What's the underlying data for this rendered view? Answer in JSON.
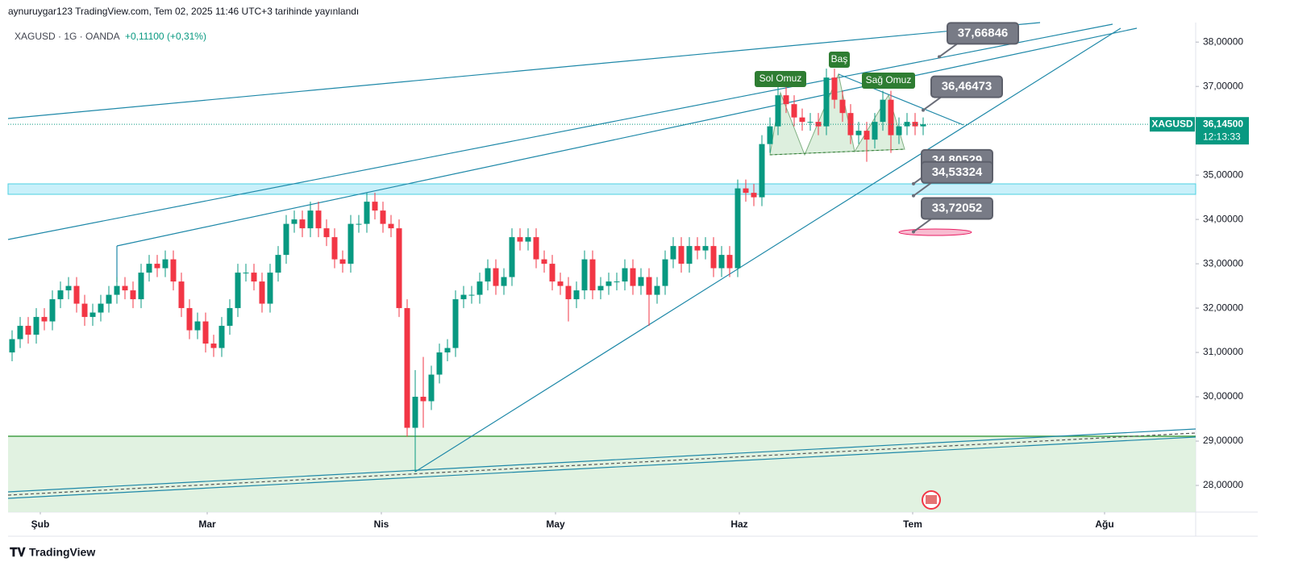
{
  "header": {
    "title": "aynuruygar123 TradingView.com, Tem 02, 2025 11:46 UTC+3 tarihinde yayınlandı"
  },
  "chart_data": {
    "type": "candlestick",
    "title": "XAGUSD · 1G · OANDA",
    "subtitle": "+0,11100 (+0,31%)",
    "up_color": "#089981",
    "down_color": "#f23645",
    "candles": [
      [
        31.0,
        31.5,
        30.8,
        31.3
      ],
      [
        31.3,
        31.8,
        31.1,
        31.6
      ],
      [
        31.6,
        31.8,
        31.2,
        31.4
      ],
      [
        31.4,
        32.0,
        31.2,
        31.8
      ],
      [
        31.8,
        32.0,
        31.5,
        31.7
      ],
      [
        31.7,
        32.4,
        31.5,
        32.2
      ],
      [
        32.2,
        32.6,
        32.0,
        32.4
      ],
      [
        32.4,
        32.7,
        32.2,
        32.5
      ],
      [
        32.5,
        32.7,
        31.9,
        32.1
      ],
      [
        32.1,
        32.3,
        31.6,
        31.8
      ],
      [
        31.8,
        32.1,
        31.6,
        31.9
      ],
      [
        31.9,
        32.3,
        31.7,
        32.1
      ],
      [
        32.1,
        32.5,
        31.9,
        32.3
      ],
      [
        32.3,
        32.7,
        32.1,
        32.5
      ],
      [
        32.5,
        32.7,
        32.2,
        32.4
      ],
      [
        32.4,
        32.6,
        32.0,
        32.2
      ],
      [
        32.2,
        33.0,
        32.0,
        32.8
      ],
      [
        32.8,
        33.2,
        32.6,
        33.0
      ],
      [
        33.0,
        33.2,
        32.7,
        32.9
      ],
      [
        32.9,
        33.3,
        32.7,
        33.1
      ],
      [
        33.1,
        33.3,
        32.4,
        32.6
      ],
      [
        32.6,
        32.8,
        31.8,
        32.0
      ],
      [
        32.0,
        32.2,
        31.3,
        31.5
      ],
      [
        31.5,
        31.9,
        31.3,
        31.7
      ],
      [
        31.7,
        31.9,
        31.0,
        31.2
      ],
      [
        31.2,
        31.4,
        30.9,
        31.1
      ],
      [
        31.1,
        31.8,
        30.9,
        31.6
      ],
      [
        31.6,
        32.2,
        31.4,
        32.0
      ],
      [
        32.0,
        33.0,
        31.8,
        32.8
      ],
      [
        32.8,
        33.0,
        32.6,
        32.8
      ],
      [
        32.8,
        33.0,
        32.4,
        32.6
      ],
      [
        32.6,
        32.8,
        31.9,
        32.1
      ],
      [
        32.1,
        33.0,
        31.9,
        32.8
      ],
      [
        32.8,
        33.4,
        32.6,
        33.2
      ],
      [
        33.2,
        34.1,
        33.0,
        33.9
      ],
      [
        33.9,
        34.2,
        33.7,
        34.0
      ],
      [
        34.0,
        34.2,
        33.6,
        33.8
      ],
      [
        33.8,
        34.4,
        33.6,
        34.2
      ],
      [
        34.2,
        34.4,
        33.6,
        33.8
      ],
      [
        33.8,
        34.0,
        33.4,
        33.6
      ],
      [
        33.6,
        33.8,
        32.9,
        33.1
      ],
      [
        33.1,
        33.3,
        32.8,
        33.0
      ],
      [
        33.0,
        34.1,
        32.8,
        33.9
      ],
      [
        33.9,
        34.1,
        33.7,
        33.9
      ],
      [
        33.9,
        34.6,
        33.7,
        34.4
      ],
      [
        34.4,
        34.6,
        34.0,
        34.2
      ],
      [
        34.2,
        34.4,
        33.7,
        33.9
      ],
      [
        33.9,
        34.1,
        33.6,
        33.8
      ],
      [
        33.8,
        34.0,
        31.8,
        32.0
      ],
      [
        32.0,
        32.2,
        29.1,
        29.3
      ],
      [
        29.3,
        30.6,
        28.3,
        30.0
      ],
      [
        30.0,
        30.9,
        29.3,
        29.9
      ],
      [
        29.9,
        30.7,
        29.7,
        30.5
      ],
      [
        30.5,
        31.2,
        30.3,
        31.0
      ],
      [
        31.0,
        31.3,
        30.8,
        31.1
      ],
      [
        31.1,
        32.4,
        30.9,
        32.2
      ],
      [
        32.2,
        32.5,
        32.0,
        32.3
      ],
      [
        32.3,
        32.5,
        32.1,
        32.3
      ],
      [
        32.3,
        32.8,
        32.1,
        32.6
      ],
      [
        32.6,
        33.1,
        32.4,
        32.9
      ],
      [
        32.9,
        33.1,
        32.3,
        32.5
      ],
      [
        32.5,
        32.9,
        32.3,
        32.7
      ],
      [
        32.7,
        33.8,
        32.5,
        33.6
      ],
      [
        33.6,
        33.8,
        33.3,
        33.5
      ],
      [
        33.5,
        33.8,
        33.3,
        33.6
      ],
      [
        33.6,
        33.8,
        32.9,
        33.1
      ],
      [
        33.1,
        33.3,
        32.8,
        33.0
      ],
      [
        33.0,
        33.2,
        32.4,
        32.6
      ],
      [
        32.6,
        32.8,
        32.3,
        32.5
      ],
      [
        32.5,
        32.7,
        31.7,
        32.2
      ],
      [
        32.2,
        32.6,
        32.0,
        32.4
      ],
      [
        32.4,
        33.3,
        32.2,
        33.1
      ],
      [
        33.1,
        33.3,
        32.2,
        32.4
      ],
      [
        32.4,
        32.7,
        32.2,
        32.5
      ],
      [
        32.5,
        32.8,
        32.3,
        32.6
      ],
      [
        32.6,
        32.8,
        32.4,
        32.6
      ],
      [
        32.6,
        33.1,
        32.4,
        32.9
      ],
      [
        32.9,
        33.1,
        32.3,
        32.5
      ],
      [
        32.5,
        32.9,
        32.3,
        32.7
      ],
      [
        32.7,
        32.9,
        31.6,
        32.3
      ],
      [
        32.3,
        32.7,
        32.1,
        32.5
      ],
      [
        32.5,
        33.3,
        32.3,
        33.1
      ],
      [
        33.1,
        33.6,
        32.9,
        33.4
      ],
      [
        33.4,
        33.6,
        32.8,
        33.0
      ],
      [
        33.0,
        33.6,
        32.8,
        33.4
      ],
      [
        33.4,
        33.6,
        33.1,
        33.3
      ],
      [
        33.3,
        33.6,
        33.1,
        33.4
      ],
      [
        33.4,
        33.6,
        32.7,
        32.9
      ],
      [
        32.9,
        33.4,
        32.7,
        33.2
      ],
      [
        33.2,
        33.4,
        32.7,
        32.9
      ],
      [
        32.9,
        34.9,
        32.7,
        34.7
      ],
      [
        34.7,
        34.9,
        34.4,
        34.6
      ],
      [
        34.6,
        34.8,
        34.3,
        34.5
      ],
      [
        34.5,
        35.9,
        34.3,
        35.7
      ],
      [
        35.7,
        36.3,
        35.5,
        36.1
      ],
      [
        36.1,
        37.0,
        35.9,
        36.8
      ],
      [
        36.8,
        37.0,
        36.4,
        36.6
      ],
      [
        36.6,
        36.8,
        36.1,
        36.3
      ],
      [
        36.3,
        36.5,
        36.0,
        36.2
      ],
      [
        36.2,
        36.4,
        36.0,
        36.2
      ],
      [
        36.2,
        36.4,
        35.9,
        36.1
      ],
      [
        36.1,
        37.4,
        35.9,
        37.2
      ],
      [
        37.2,
        37.4,
        36.5,
        36.7
      ],
      [
        36.7,
        36.9,
        36.2,
        36.4
      ],
      [
        36.4,
        36.6,
        35.7,
        35.9
      ],
      [
        35.9,
        36.2,
        35.7,
        36.0
      ],
      [
        36.0,
        36.2,
        35.3,
        35.8
      ],
      [
        35.8,
        36.4,
        35.6,
        36.2
      ],
      [
        36.2,
        36.9,
        36.0,
        36.7
      ],
      [
        36.7,
        36.9,
        35.5,
        35.9
      ],
      [
        35.9,
        36.3,
        35.7,
        36.1
      ],
      [
        36.1,
        36.4,
        35.9,
        36.2
      ],
      [
        36.2,
        36.4,
        35.9,
        36.1
      ],
      [
        36.1,
        36.3,
        35.9,
        36.145
      ]
    ],
    "xlim": [
      -0.5,
      146.8
    ],
    "xticks": [
      {
        "value": 3.5,
        "label": "Şub"
      },
      {
        "value": 24.2,
        "label": "Mar"
      },
      {
        "value": 45.8,
        "label": "Nis"
      },
      {
        "value": 67.4,
        "label": "May"
      },
      {
        "value": 90.2,
        "label": "Haz"
      },
      {
        "value": 111.7,
        "label": "Tem"
      },
      {
        "value": 135.5,
        "label": "Ağu"
      }
    ],
    "ylim": [
      27.4,
      38.44
    ],
    "yticks": [
      {
        "value": 28,
        "label": "28,00000"
      },
      {
        "value": 29,
        "label": "29,00000"
      },
      {
        "value": 30,
        "label": "30,00000"
      },
      {
        "value": 31,
        "label": "31,00000"
      },
      {
        "value": 32,
        "label": "32,00000"
      },
      {
        "value": 33,
        "label": "33,00000"
      },
      {
        "value": 34,
        "label": "34,00000"
      },
      {
        "value": 35,
        "label": "35,00000"
      },
      {
        "value": 36,
        "label": "36,00000"
      },
      {
        "value": 37,
        "label": "37,00000"
      },
      {
        "value": 38,
        "label": "38,00000"
      }
    ],
    "last_price": {
      "symbol": "XAGUSD",
      "value": 36.145,
      "label": "36,14500",
      "countdown": "12:13:33"
    },
    "price_labels": [
      {
        "value": 37.66846,
        "label": "37,66846"
      },
      {
        "value": 36.46473,
        "label": "36,46473"
      },
      {
        "value": 34.80529,
        "label": "34,80529"
      },
      {
        "value": 34.53324,
        "label": "34,53324"
      },
      {
        "value": 33.72052,
        "label": "33,72052"
      }
    ],
    "pattern_labels": [
      "Sol Omuz",
      "Baş",
      "Sağ Omuz"
    ]
  },
  "footer": {
    "brand": "TradingView"
  }
}
